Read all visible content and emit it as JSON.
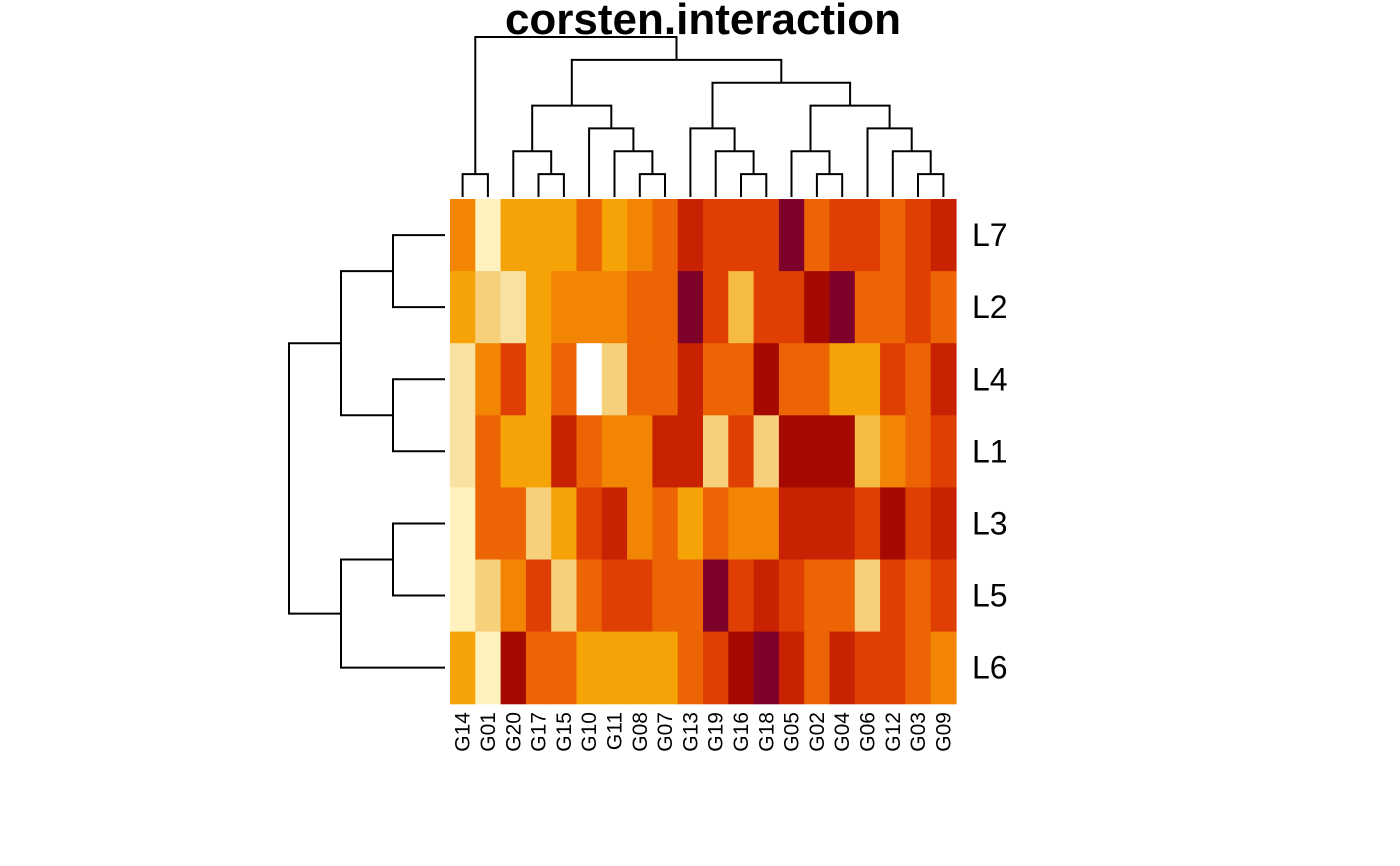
{
  "chart_data": {
    "type": "heatmap",
    "title": "corsten.interaction",
    "rows": [
      "L7",
      "L2",
      "L4",
      "L1",
      "L3",
      "L5",
      "L6"
    ],
    "columns": [
      "G14",
      "G01",
      "G20",
      "G17",
      "G15",
      "G10",
      "G11",
      "G08",
      "G07",
      "G13",
      "G19",
      "G16",
      "G18",
      "G05",
      "G02",
      "G04",
      "G06",
      "G12",
      "G03",
      "G09"
    ],
    "values": [
      [
        6,
        1,
        5,
        5,
        5,
        7,
        5,
        6,
        7,
        9,
        8,
        8,
        8,
        11,
        7,
        8,
        8,
        7,
        8,
        9
      ],
      [
        5,
        3,
        2,
        5,
        6,
        6,
        6,
        7,
        7,
        11,
        8,
        4,
        8,
        8,
        10,
        11,
        7,
        7,
        8,
        7
      ],
      [
        2,
        6,
        8,
        5,
        7,
        12,
        3,
        7,
        7,
        9,
        7,
        7,
        10,
        7,
        7,
        5,
        5,
        8,
        7,
        9
      ],
      [
        2,
        7,
        5,
        5,
        9,
        7,
        6,
        6,
        9,
        9,
        3,
        8,
        3,
        10,
        10,
        10,
        4,
        6,
        7,
        8
      ],
      [
        1,
        7,
        7,
        3,
        5,
        8,
        9,
        6,
        7,
        5,
        7,
        6,
        6,
        9,
        9,
        9,
        8,
        10,
        8,
        9
      ],
      [
        1,
        3,
        6,
        8,
        3,
        7,
        8,
        8,
        7,
        7,
        11,
        8,
        9,
        8,
        7,
        7,
        3,
        8,
        7,
        8
      ],
      [
        5,
        1,
        10,
        7,
        7,
        5,
        5,
        5,
        5,
        7,
        8,
        10,
        11,
        9,
        7,
        9,
        8,
        8,
        7,
        6
      ]
    ],
    "color_scale": [
      "#FFFFCC",
      "#FFF2BF",
      "#F9E1A2",
      "#F6D07A",
      "#F6BC42",
      "#F5A306",
      "#F28504",
      "#EC6403",
      "#E03F03",
      "#C82203",
      "#A50A02",
      "#7D0128"
    ],
    "row_dendrogram": "((L7,L2),(L4,L1)),((L3,L5),L6)",
    "col_dendrogram": "(G14,G01),(((G20,(G17,G15)),(G10,(G11,(G08,G07)))),((G13,(G19,(G16,G18))),((G05,(G02,G04)),(G06,(G12,(G03,G09))))))"
  }
}
